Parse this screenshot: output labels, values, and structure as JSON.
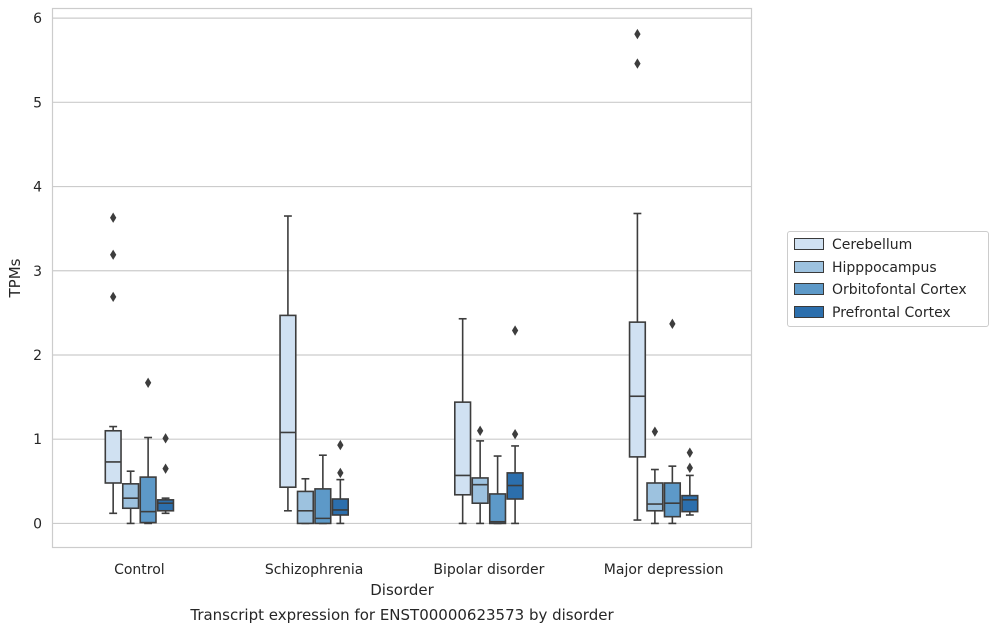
{
  "caption": "Transcript expression for ENST00000623573 by disorder",
  "chart_data": {
    "type": "box",
    "xlabel": "Disorder",
    "ylabel": "TPMs",
    "ylim": [
      -0.28,
      6.12
    ],
    "yticks": [
      "0",
      "1",
      "2",
      "3",
      "4",
      "5",
      "6"
    ],
    "grid": "horizontal",
    "legend_position": "right",
    "categories": [
      "Control",
      "Schizophrenia",
      "Bipolar disorder",
      "Major depression"
    ],
    "series": [
      {
        "name": "Cerebellum",
        "color": "#d0e1f2",
        "boxes": [
          {
            "low": 0.12,
            "q1": 0.48,
            "median": 0.73,
            "q3": 1.1,
            "high": 1.15,
            "outliers": [
              2.69,
              3.19,
              3.63
            ]
          },
          {
            "low": 0.15,
            "q1": 0.43,
            "median": 1.08,
            "q3": 2.47,
            "high": 3.65,
            "outliers": []
          },
          {
            "low": 0.0,
            "q1": 0.34,
            "median": 0.57,
            "q3": 1.44,
            "high": 2.43,
            "outliers": []
          },
          {
            "low": 0.04,
            "q1": 0.79,
            "median": 1.51,
            "q3": 2.39,
            "high": 3.68,
            "outliers": [
              5.46,
              5.81
            ]
          }
        ]
      },
      {
        "name": "Hipppocampus",
        "color": "#9dc2df",
        "boxes": [
          {
            "low": 0.0,
            "q1": 0.18,
            "median": 0.3,
            "q3": 0.47,
            "high": 0.62,
            "outliers": []
          },
          {
            "low": 0.0,
            "q1": 0.0,
            "median": 0.15,
            "q3": 0.38,
            "high": 0.53,
            "outliers": []
          },
          {
            "low": 0.0,
            "q1": 0.24,
            "median": 0.46,
            "q3": 0.54,
            "high": 0.98,
            "outliers": [
              1.1
            ]
          },
          {
            "low": 0.0,
            "q1": 0.15,
            "median": 0.23,
            "q3": 0.48,
            "high": 0.64,
            "outliers": [
              1.09
            ]
          }
        ]
      },
      {
        "name": "Orbitofontal Cortex",
        "color": "#5d99c8",
        "boxes": [
          {
            "low": 0.0,
            "q1": 0.01,
            "median": 0.14,
            "q3": 0.55,
            "high": 1.02,
            "outliers": [
              1.67
            ]
          },
          {
            "low": 0.0,
            "q1": 0.0,
            "median": 0.06,
            "q3": 0.41,
            "high": 0.81,
            "outliers": []
          },
          {
            "low": 0.0,
            "q1": 0.0,
            "median": 0.02,
            "q3": 0.35,
            "high": 0.8,
            "outliers": []
          },
          {
            "low": 0.0,
            "q1": 0.08,
            "median": 0.24,
            "q3": 0.48,
            "high": 0.68,
            "outliers": [
              2.37
            ]
          }
        ]
      },
      {
        "name": "Prefrontal Cortex",
        "color": "#2c6fad",
        "boxes": [
          {
            "low": 0.12,
            "q1": 0.15,
            "median": 0.24,
            "q3": 0.28,
            "high": 0.3,
            "outliers": [
              0.65,
              1.01
            ]
          },
          {
            "low": 0.0,
            "q1": 0.1,
            "median": 0.16,
            "q3": 0.29,
            "high": 0.52,
            "outliers": [
              0.6,
              0.93
            ]
          },
          {
            "low": 0.0,
            "q1": 0.29,
            "median": 0.45,
            "q3": 0.6,
            "high": 0.92,
            "outliers": [
              1.06,
              2.29
            ]
          },
          {
            "low": 0.1,
            "q1": 0.14,
            "median": 0.28,
            "q3": 0.33,
            "high": 0.57,
            "outliers": [
              0.66,
              0.84
            ]
          }
        ]
      }
    ]
  }
}
